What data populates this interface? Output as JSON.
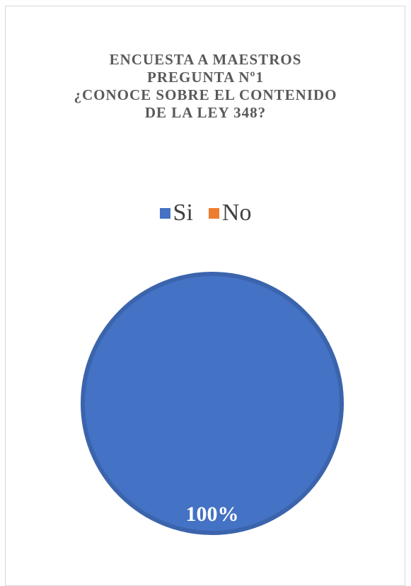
{
  "chart_data": {
    "type": "pie",
    "title_lines": [
      "ENCUESTA A MAESTROS",
      "PREGUNTA Nº1",
      "¿CONOCE SOBRE EL CONTENIDO",
      "DE LA LEY 348?"
    ],
    "categories": [
      "Si",
      "No"
    ],
    "values": [
      100,
      0
    ],
    "data_labels": [
      "100%",
      ""
    ],
    "colors": [
      "#4472c4",
      "#ed7d31"
    ],
    "legend_position": "top"
  }
}
